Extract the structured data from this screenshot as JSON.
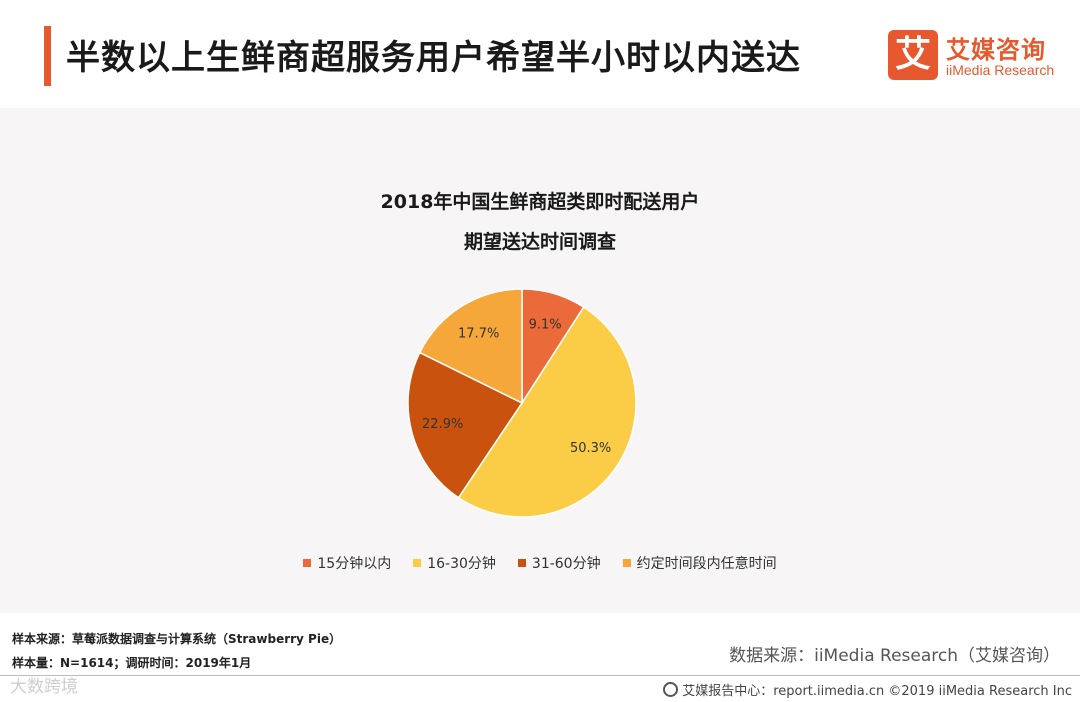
{
  "header": {
    "title": "半数以上生鲜商超服务用户希望半小时以内送达"
  },
  "logo": {
    "mark": "艾",
    "cn": "艾媒咨询",
    "en": "iiMedia Research"
  },
  "chart_data": {
    "type": "pie",
    "title": [
      "2018年中国生鲜商超类即时配送用户",
      "期望送达时间调查"
    ],
    "categories": [
      "15分钟以内",
      "16-30分钟",
      "31-60分钟",
      "约定时间段内任意时间"
    ],
    "values": [
      9.1,
      50.3,
      22.9,
      17.7
    ],
    "labels": [
      "9.1%",
      "50.3%",
      "22.9%",
      "17.7%"
    ],
    "colors": [
      "#ea6a3a",
      "#fbcd47",
      "#c9530e",
      "#f5a73a"
    ],
    "legend": "bottom"
  },
  "notes": {
    "sample_source": "样本来源：草莓派数据调查与计算系统（Strawberry Pie）",
    "sample_size": "样本量：N=1614；调研时间：2019年1月"
  },
  "source": "数据来源：iiMedia Research（艾媒咨询）",
  "watermark": "大数跨境",
  "footer": {
    "text": "艾媒报告中心：report.iimedia.cn  ©2019  iiMedia Research  Inc"
  },
  "colors": {
    "accent": "#e8582e"
  }
}
